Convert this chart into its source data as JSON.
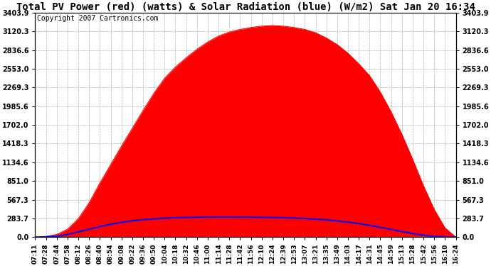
{
  "title": "Total PV Power (red) (watts) & Solar Radiation (blue) (W/m2) Sat Jan 20 16:34",
  "copyright": "Copyright 2007 Cartronics.com",
  "bg_color": "#ffffff",
  "plot_bg_color": "#ffffff",
  "grid_color": "#aaaaaa",
  "pv_color": "red",
  "solar_color": "blue",
  "y_max": 3403.9,
  "y_min": 0.0,
  "y_ticks": [
    0.0,
    283.7,
    567.3,
    851.0,
    1134.6,
    1418.3,
    1702.0,
    1985.6,
    2269.3,
    2553.0,
    2836.6,
    3120.3,
    3403.9
  ],
  "x_labels": [
    "07:11",
    "07:28",
    "07:44",
    "07:58",
    "08:12",
    "08:26",
    "08:40",
    "08:54",
    "09:08",
    "09:22",
    "09:36",
    "09:50",
    "10:04",
    "10:18",
    "10:32",
    "10:46",
    "11:00",
    "11:14",
    "11:28",
    "11:42",
    "11:56",
    "12:10",
    "12:24",
    "12:39",
    "12:53",
    "13:07",
    "13:21",
    "13:35",
    "13:49",
    "14:03",
    "14:17",
    "14:31",
    "14:45",
    "14:59",
    "15:13",
    "15:28",
    "15:42",
    "15:56",
    "16:10",
    "16:24"
  ],
  "pv_values": [
    0,
    10,
    40,
    120,
    280,
    520,
    820,
    1100,
    1380,
    1650,
    1920,
    2180,
    2410,
    2580,
    2720,
    2850,
    2960,
    3050,
    3110,
    3150,
    3180,
    3200,
    3210,
    3200,
    3180,
    3150,
    3100,
    3020,
    2920,
    2790,
    2630,
    2450,
    2200,
    1900,
    1560,
    1180,
    780,
    420,
    140,
    0
  ],
  "solar_values": [
    0,
    5,
    15,
    40,
    80,
    120,
    160,
    195,
    225,
    248,
    265,
    278,
    288,
    295,
    300,
    303,
    305,
    306,
    306,
    305,
    304,
    302,
    299,
    295,
    290,
    283,
    274,
    262,
    247,
    228,
    206,
    180,
    150,
    118,
    85,
    55,
    30,
    12,
    3,
    0
  ],
  "title_fontsize": 10,
  "tick_fontsize": 7,
  "copyright_fontsize": 7
}
